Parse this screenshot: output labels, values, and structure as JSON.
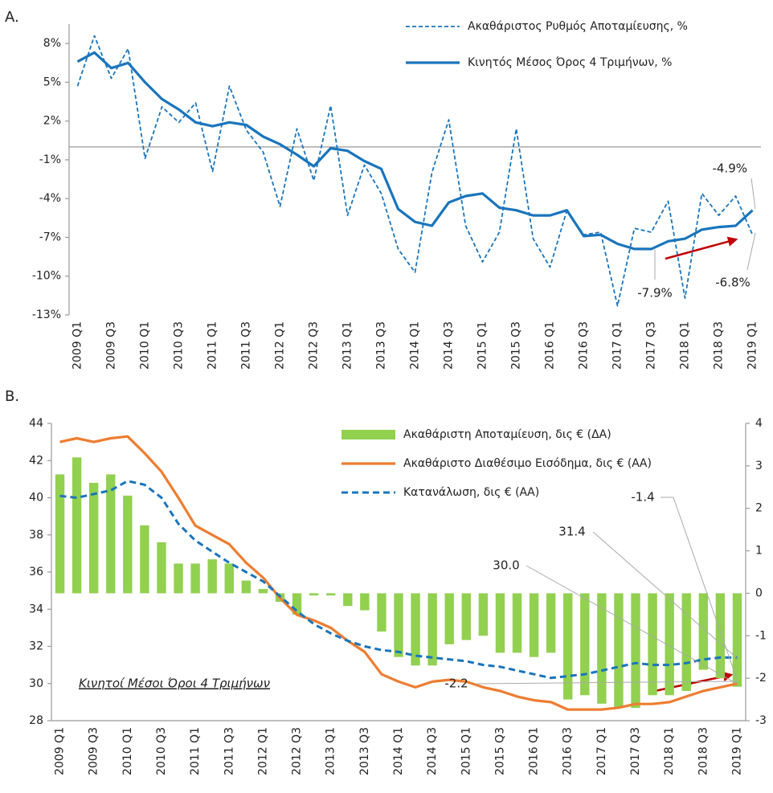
{
  "chart_data": [
    {
      "type": "line",
      "label": "A.",
      "categories": [
        "2009 Q1",
        null,
        "2009 Q3",
        null,
        "2010 Q1",
        null,
        "2010 Q3",
        null,
        "2011 Q1",
        null,
        "2011 Q3",
        null,
        "2012 Q1",
        null,
        "2012 Q3",
        null,
        "2013 Q1",
        null,
        "2013 Q3",
        null,
        "2014 Q1",
        null,
        "2014 Q3",
        null,
        "2015 Q1",
        null,
        "2015 Q3",
        null,
        "2016 Q1",
        null,
        "2016 Q3",
        null,
        "2017 Q1",
        null,
        "2017 Q3",
        null,
        "2018 Q1",
        null,
        "2018 Q3",
        null,
        "2019 Q1"
      ],
      "series": [
        {
          "name": "Ακαθάριστος Ρυθμός Αποταμίευσης, %",
          "color": "#1a75bc",
          "style": "dashed",
          "values": [
            4.7,
            8.6,
            5.3,
            7.6,
            -0.9,
            3.1,
            1.9,
            3.4,
            -1.9,
            4.7,
            1.3,
            -0.4,
            -4.6,
            1.4,
            -2.6,
            3.2,
            -5.3,
            -1.4,
            -3.6,
            -7.9,
            -9.7,
            -2.0,
            2.1,
            -6.1,
            -8.9,
            -6.6,
            1.4,
            -7.1,
            -9.3,
            -4.9,
            -6.8,
            -6.6,
            -12.3,
            -6.3,
            -6.6,
            -4.2,
            -11.7,
            -3.6,
            -5.3,
            -3.8,
            -6.8
          ]
        },
        {
          "name": "Κινητός Μέσος Όρος 4 Τριμήνων, %",
          "color": "#1a75bc",
          "style": "solid",
          "values": [
            6.6,
            7.3,
            6.1,
            6.5,
            5.0,
            3.7,
            2.9,
            1.9,
            1.6,
            1.9,
            1.7,
            0.8,
            0.2,
            -0.6,
            -1.5,
            -0.1,
            -0.3,
            -1.1,
            -1.7,
            -4.8,
            -5.8,
            -6.1,
            -4.3,
            -3.8,
            -3.6,
            -4.7,
            -4.9,
            -5.3,
            -5.3,
            -4.9,
            -6.9,
            -6.8,
            -7.5,
            -7.9,
            -7.9,
            -7.3,
            -7.1,
            -6.4,
            -6.2,
            -6.1,
            -4.9
          ]
        }
      ],
      "ylim": [
        -13,
        9.5
      ],
      "yticks": [
        {
          "value": 8,
          "label": "8%"
        },
        {
          "value": 5,
          "label": "5%"
        },
        {
          "value": 2,
          "label": "2%"
        },
        {
          "value": -1,
          "label": "-1%"
        },
        {
          "value": -4,
          "label": "-4%"
        },
        {
          "value": -7,
          "label": "-7%"
        },
        {
          "value": -10,
          "label": "-10%"
        },
        {
          "value": -13,
          "label": "-13%"
        }
      ],
      "legend": "upper right",
      "annotations": [
        "-4.9%",
        "-7.9%",
        "-6.8%"
      ]
    },
    {
      "type": "combo",
      "label": "B.",
      "categories": [
        "2009 Q1",
        null,
        "2009 Q3",
        null,
        "2010 Q1",
        null,
        "2010 Q3",
        null,
        "2011 Q1",
        null,
        "2011 Q3",
        null,
        "2012 Q1",
        null,
        "2012 Q3",
        null,
        "2013 Q1",
        null,
        "2013 Q3",
        null,
        "2014 Q1",
        null,
        "2014 Q3",
        null,
        "2015 Q1",
        null,
        "2015 Q3",
        null,
        "2016 Q1",
        null,
        "2016 Q3",
        null,
        "2017 Q1",
        null,
        "2017 Q3",
        null,
        "2018 Q1",
        null,
        "2018 Q3",
        null,
        "2019 Q1"
      ],
      "series": [
        {
          "name": "Ακαθάριστη Αποταμίευση, δις € (ΔΑ)",
          "type": "bar",
          "axis": "y2",
          "color": "#92d050",
          "values": [
            2.8,
            3.2,
            2.6,
            2.8,
            2.3,
            1.6,
            1.2,
            0.7,
            0.7,
            0.8,
            0.7,
            0.3,
            0.1,
            -0.2,
            -0.5,
            -0.05,
            -0.05,
            -0.3,
            -0.4,
            -0.9,
            -1.5,
            -1.7,
            -1.7,
            -1.2,
            -1.1,
            -1.0,
            -1.4,
            -1.4,
            -1.5,
            -1.4,
            -2.5,
            -2.4,
            -2.6,
            -2.7,
            -2.7,
            -2.4,
            -2.4,
            -2.3,
            -1.8,
            -2.0,
            -2.2
          ]
        },
        {
          "name": "Ακαθάριστο Διαθέσιμο Εισόδημα, δις € (ΑΑ)",
          "type": "line",
          "style": "solid",
          "color": "#ed7d31",
          "values": [
            43.0,
            43.2,
            43.0,
            43.2,
            43.3,
            42.4,
            41.4,
            40.0,
            38.5,
            38.0,
            37.5,
            36.5,
            35.7,
            34.6,
            33.7,
            33.4,
            33.0,
            32.3,
            31.7,
            30.5,
            30.1,
            29.8,
            30.1,
            30.2,
            30.1,
            29.8,
            29.6,
            29.3,
            29.1,
            29.0,
            28.6,
            28.6,
            28.6,
            28.7,
            28.9,
            28.9,
            29.0,
            29.3,
            29.6,
            29.8,
            30.0
          ]
        },
        {
          "name": "Κατανάλωση, δις € (ΑΑ)",
          "type": "line",
          "style": "dashed",
          "color": "#1a75bc",
          "values": [
            40.1,
            40.0,
            40.2,
            40.4,
            40.9,
            40.7,
            40.0,
            38.6,
            37.7,
            37.1,
            36.5,
            36.0,
            35.5,
            34.7,
            33.9,
            33.2,
            32.7,
            32.3,
            32.0,
            31.8,
            31.7,
            31.5,
            31.4,
            31.3,
            31.2,
            31.0,
            30.9,
            30.7,
            30.5,
            30.3,
            30.4,
            30.5,
            30.7,
            30.9,
            31.1,
            31.0,
            31.0,
            31.1,
            31.3,
            31.4,
            31.4
          ]
        }
      ],
      "ylim": [
        28,
        44
      ],
      "yticks": [
        28,
        30,
        32,
        34,
        36,
        38,
        40,
        42,
        44
      ],
      "y2lim": [
        -3,
        4
      ],
      "y2ticks": [
        -3,
        -2,
        -1,
        0,
        1,
        2,
        3,
        4
      ],
      "legend": "upper right",
      "annotations": [
        "30.0",
        "31.4",
        "-1.4",
        "-2.2",
        "Κινητοί Μέσοι Όροι 4 Τριμήνων"
      ]
    }
  ]
}
